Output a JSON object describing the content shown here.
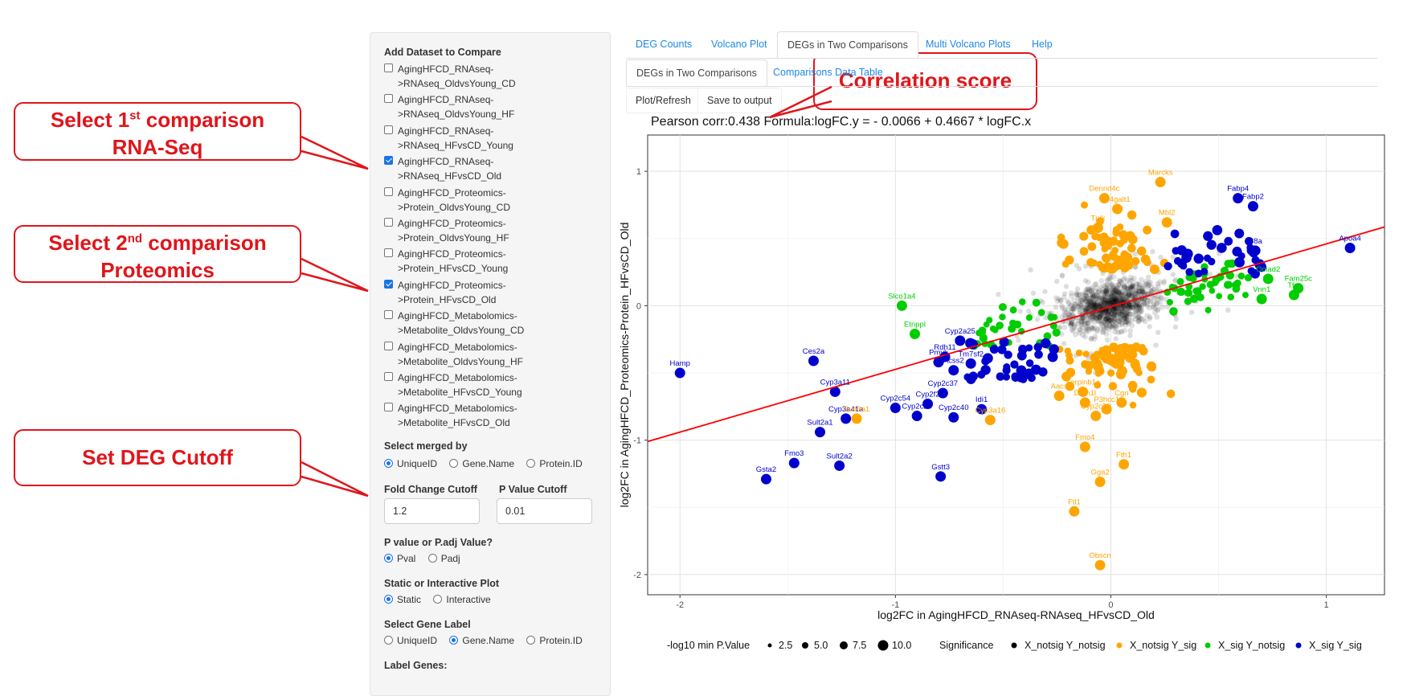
{
  "callouts": {
    "first": {
      "prefix": "Select 1",
      "sup": "st",
      "suffix": " comparison",
      "line2": "RNA-Seq"
    },
    "second": {
      "prefix": "Select 2",
      "sup": "nd",
      "suffix": "  comparison",
      "line2": "Proteomics"
    },
    "cutoff": "Set DEG Cutoff",
    "corr": "Correlation score"
  },
  "sidebar": {
    "datasets_header": "Add Dataset to Compare",
    "datasets": [
      {
        "line1": "AgingHFCD_RNAseq-",
        "line2": ">RNAseq_OldvsYoung_CD",
        "checked": false
      },
      {
        "line1": "AgingHFCD_RNAseq-",
        "line2": ">RNAseq_OldvsYoung_HF",
        "checked": false
      },
      {
        "line1": "AgingHFCD_RNAseq-",
        "line2": ">RNAseq_HFvsCD_Young",
        "checked": false
      },
      {
        "line1": "AgingHFCD_RNAseq-",
        "line2": ">RNAseq_HFvsCD_Old",
        "checked": true
      },
      {
        "line1": "AgingHFCD_Proteomics-",
        "line2": ">Protein_OldvsYoung_CD",
        "checked": false
      },
      {
        "line1": "AgingHFCD_Proteomics-",
        "line2": ">Protein_OldvsYoung_HF",
        "checked": false
      },
      {
        "line1": "AgingHFCD_Proteomics-",
        "line2": ">Protein_HFvsCD_Young",
        "checked": false
      },
      {
        "line1": "AgingHFCD_Proteomics-",
        "line2": ">Protein_HFvsCD_Old",
        "checked": true
      },
      {
        "line1": "AgingHFCD_Metabolomics-",
        "line2": ">Metabolite_OldvsYoung_CD",
        "checked": false
      },
      {
        "line1": "AgingHFCD_Metabolomics-",
        "line2": ">Metabolite_OldvsYoung_HF",
        "checked": false
      },
      {
        "line1": "AgingHFCD_Metabolomics-",
        "line2": ">Metabolite_HFvsCD_Young",
        "checked": false
      },
      {
        "line1": "AgingHFCD_Metabolomics-",
        "line2": ">Metabolite_HFvsCD_Old",
        "checked": false
      }
    ],
    "merged_by": {
      "label": "Select merged by",
      "options": [
        "UniqueID",
        "Gene.Name",
        "Protein.ID"
      ],
      "selected": "UniqueID"
    },
    "fc_cutoff": {
      "label": "Fold Change Cutoff",
      "value": "1.2"
    },
    "p_cutoff": {
      "label": "P Value Cutoff",
      "value": "0.01"
    },
    "pval_type": {
      "label": "P value or P.adj Value?",
      "options": [
        "Pval",
        "Padj"
      ],
      "selected": "Pval"
    },
    "plot_type": {
      "label": "Static or Interactive Plot",
      "options": [
        "Static",
        "Interactive"
      ],
      "selected": "Static"
    },
    "gene_label": {
      "label": "Select Gene Label",
      "options": [
        "UniqueID",
        "Gene.Name",
        "Protein.ID"
      ],
      "selected": "Gene.Name"
    },
    "label_genes": "Label Genes:"
  },
  "main_tabs": [
    "DEG Counts",
    "Volcano Plot",
    "DEGs in Two Comparisons",
    "Multi Volcano Plots",
    "Help"
  ],
  "main_tab_active": "DEGs in Two Comparisons",
  "sub_tabs": [
    "DEGs in Two Comparisons",
    "Comparisons Data Table"
  ],
  "buttons": {
    "plot": "Plot/Refresh",
    "save": "Save to output"
  },
  "plot_title": "Pearson corr:0.438 Formula:logFC.y = - 0.0066 + 0.4667 * logFC.x",
  "colors": {
    "notsig": "#000000",
    "x_notsig_y_sig": "#FFA500",
    "x_sig_y_notsig": "#00CD00",
    "x_sig_y_sig": "#0000CD",
    "fit_line": "#FF0000",
    "callout": "#E0151B",
    "tab_link": "#1E88E5"
  },
  "chart_data": {
    "type": "scatter",
    "xlabel": "log2FC in AgingHFCD_RNAseq-RNAseq_HFvsCD_Old",
    "ylabel": "log2FC in AgingHFCD_Proteomics-Protein_HFvsCD_Old",
    "xlim": [
      -2.15,
      1.27
    ],
    "ylim": [
      -2.15,
      1.27
    ],
    "xticks": [
      -2,
      -1,
      0,
      1
    ],
    "yticks": [
      1,
      0,
      -1,
      -2
    ],
    "fit": {
      "intercept": -0.0066,
      "slope": 0.4667
    },
    "legend_size": {
      "title": "-log10 min P.Value",
      "values": [
        2.5,
        5.0,
        7.5,
        10.0
      ]
    },
    "legend_color": {
      "title": "Significance",
      "entries": [
        "X_notsig Y_notsig",
        "X_notsig Y_sig",
        "X_sig Y_notsig",
        "X_sig Y_sig"
      ]
    },
    "labeled_points": [
      {
        "label": "Marcks",
        "x": 0.23,
        "y": 0.92,
        "group": "X_notsig Y_sig"
      },
      {
        "label": "Dennd4c",
        "x": -0.03,
        "y": 0.8,
        "group": "X_notsig Y_sig"
      },
      {
        "label": "B4galt1",
        "x": 0.03,
        "y": 0.72,
        "group": "X_notsig Y_sig"
      },
      {
        "label": "Mbl2",
        "x": 0.26,
        "y": 0.62,
        "group": "X_notsig Y_sig"
      },
      {
        "label": "Tnik",
        "x": -0.06,
        "y": 0.58,
        "group": "X_notsig Y_sig"
      },
      {
        "label": "Fabp4",
        "x": 0.59,
        "y": 0.8,
        "group": "X_sig Y_sig"
      },
      {
        "label": "Fabp2",
        "x": 0.66,
        "y": 0.74,
        "group": "X_sig Y_sig"
      },
      {
        "label": "C8a",
        "x": 0.67,
        "y": 0.41,
        "group": "X_sig Y_sig"
      },
      {
        "label": "Apoa4",
        "x": 1.11,
        "y": 0.43,
        "group": "X_sig Y_sig"
      },
      {
        "label": "Ociad2",
        "x": 0.73,
        "y": 0.2,
        "group": "X_sig Y_notsig"
      },
      {
        "label": "Fam25c",
        "x": 0.87,
        "y": 0.13,
        "group": "X_sig Y_notsig"
      },
      {
        "label": "Tfrc",
        "x": 0.85,
        "y": 0.08,
        "group": "X_sig Y_notsig"
      },
      {
        "label": "Vnn1",
        "x": 0.7,
        "y": 0.05,
        "group": "X_sig Y_notsig"
      },
      {
        "label": "Slco1a4",
        "x": -0.97,
        "y": 0.0,
        "group": "X_sig Y_notsig"
      },
      {
        "label": "Etnppl",
        "x": -0.91,
        "y": -0.21,
        "group": "X_sig Y_notsig"
      },
      {
        "label": "Cyp2a25",
        "x": -0.7,
        "y": -0.26,
        "group": "X_sig Y_sig"
      },
      {
        "label": "Rdh11",
        "x": -0.77,
        "y": -0.38,
        "group": "X_sig Y_sig"
      },
      {
        "label": "Pmvk",
        "x": -0.8,
        "y": -0.42,
        "group": "X_sig Y_sig"
      },
      {
        "label": "Acss2",
        "x": -0.73,
        "y": -0.48,
        "group": "X_sig Y_sig"
      },
      {
        "label": "Tm7sf2",
        "x": -0.65,
        "y": -0.43,
        "group": "X_sig Y_sig"
      },
      {
        "label": "Hamp",
        "x": -2.0,
        "y": -0.5,
        "group": "X_sig Y_sig"
      },
      {
        "label": "Ces2a",
        "x": -1.38,
        "y": -0.41,
        "group": "X_sig Y_sig"
      },
      {
        "label": "Cyp3a11",
        "x": -1.28,
        "y": -0.64,
        "group": "X_sig Y_sig"
      },
      {
        "label": "Cyp2c37",
        "x": -0.78,
        "y": -0.65,
        "group": "X_sig Y_sig"
      },
      {
        "label": "Cyp2c54",
        "x": -1.0,
        "y": -0.76,
        "group": "X_sig Y_sig"
      },
      {
        "label": "Cyp2f2",
        "x": -0.85,
        "y": -0.73,
        "group": "X_sig Y_sig"
      },
      {
        "label": "Cyp2c29",
        "x": -0.9,
        "y": -0.82,
        "group": "X_sig Y_sig"
      },
      {
        "label": "Cyp3a41a",
        "x": -1.23,
        "y": -0.84,
        "group": "X_sig Y_sig"
      },
      {
        "label": "Sult3a1",
        "x": -1.18,
        "y": -0.84,
        "group": "X_notsig Y_sig"
      },
      {
        "label": "Idi1",
        "x": -0.6,
        "y": -0.77,
        "group": "X_sig Y_sig"
      },
      {
        "label": "Cyp2c40",
        "x": -0.73,
        "y": -0.83,
        "group": "X_sig Y_sig"
      },
      {
        "label": "Cyp3a16",
        "x": -0.56,
        "y": -0.85,
        "group": "X_notsig Y_sig"
      },
      {
        "label": "Aacs",
        "x": -0.24,
        "y": -0.67,
        "group": "X_notsig Y_sig"
      },
      {
        "label": "Serpinb1a",
        "x": -0.13,
        "y": -0.64,
        "group": "X_notsig Y_sig"
      },
      {
        "label": "Dnm1l",
        "x": -0.12,
        "y": -0.72,
        "group": "X_notsig Y_sig"
      },
      {
        "label": "Cgn",
        "x": 0.05,
        "y": -0.72,
        "group": "X_notsig Y_sig"
      },
      {
        "label": "Cyp2c39",
        "x": -0.07,
        "y": -0.82,
        "group": "X_notsig Y_sig"
      },
      {
        "label": "P3hcc1",
        "x": -0.02,
        "y": -0.77,
        "group": "X_notsig Y_sig"
      },
      {
        "label": "Sult2a1",
        "x": -1.35,
        "y": -0.94,
        "group": "X_sig Y_sig"
      },
      {
        "label": "Fmo3",
        "x": -1.47,
        "y": -1.17,
        "group": "X_sig Y_sig"
      },
      {
        "label": "Gsta2",
        "x": -1.6,
        "y": -1.29,
        "group": "X_sig Y_sig"
      },
      {
        "label": "Sult2a2",
        "x": -1.26,
        "y": -1.19,
        "group": "X_sig Y_sig"
      },
      {
        "label": "Gstt3",
        "x": -0.79,
        "y": -1.27,
        "group": "X_sig Y_sig"
      },
      {
        "label": "Fmo4",
        "x": -0.12,
        "y": -1.05,
        "group": "X_notsig Y_sig"
      },
      {
        "label": "Fth1",
        "x": 0.06,
        "y": -1.18,
        "group": "X_notsig Y_sig"
      },
      {
        "label": "Gga2",
        "x": -0.05,
        "y": -1.31,
        "group": "X_notsig Y_sig"
      },
      {
        "label": "Ftl1",
        "x": -0.17,
        "y": -1.53,
        "group": "X_notsig Y_sig"
      },
      {
        "label": "Obscn",
        "x": -0.05,
        "y": -1.93,
        "group": "X_notsig Y_sig"
      }
    ]
  }
}
